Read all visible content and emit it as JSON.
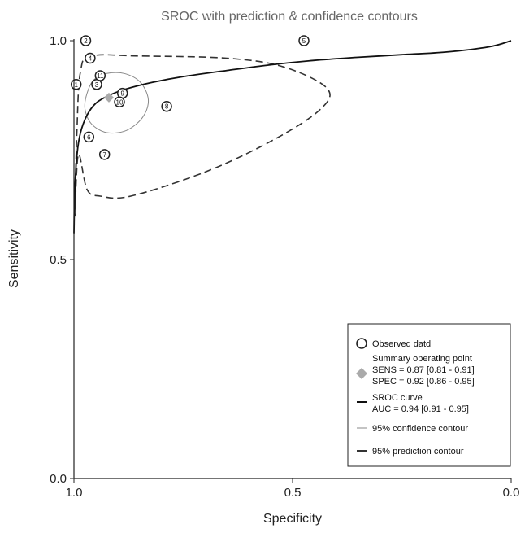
{
  "chart_data": {
    "type": "scatter",
    "title": "SROC with  prediction & confidence contours",
    "xlabel": "Specificity",
    "ylabel": "Sensitivity",
    "xlim": [
      1.0,
      0.0
    ],
    "ylim": [
      0.0,
      1.0
    ],
    "x_axis_reversed": true,
    "x_ticks": [
      "1.0",
      "0.5",
      "0.0"
    ],
    "y_ticks": [
      "0.0",
      "0.5",
      "1.0"
    ],
    "grid": false,
    "legend_position": "bottom-right",
    "studies": [
      {
        "label": "1",
        "specificity": 0.995,
        "sensitivity": 0.9
      },
      {
        "label": "2",
        "specificity": 0.973,
        "sensitivity": 1.0
      },
      {
        "label": "3",
        "specificity": 0.948,
        "sensitivity": 0.9
      },
      {
        "label": "4",
        "specificity": 0.963,
        "sensitivity": 0.96
      },
      {
        "label": "5",
        "specificity": 0.474,
        "sensitivity": 1.0
      },
      {
        "label": "6",
        "specificity": 0.966,
        "sensitivity": 0.78
      },
      {
        "label": "7",
        "specificity": 0.93,
        "sensitivity": 0.74
      },
      {
        "label": "8",
        "specificity": 0.788,
        "sensitivity": 0.85
      },
      {
        "label": "9",
        "specificity": 0.889,
        "sensitivity": 0.88
      },
      {
        "label": "10",
        "specificity": 0.896,
        "sensitivity": 0.86
      },
      {
        "label": "11",
        "specificity": 0.94,
        "sensitivity": 0.92
      }
    ],
    "summary_point": {
      "specificity": 0.92,
      "sensitivity": 0.87
    },
    "sroc_curve": [
      [
        1.0,
        0.56
      ],
      [
        0.998,
        0.66
      ],
      [
        0.993,
        0.74
      ],
      [
        0.985,
        0.79
      ],
      [
        0.97,
        0.83
      ],
      [
        0.95,
        0.857
      ],
      [
        0.92,
        0.875
      ],
      [
        0.88,
        0.89
      ],
      [
        0.82,
        0.905
      ],
      [
        0.75,
        0.918
      ],
      [
        0.65,
        0.932
      ],
      [
        0.55,
        0.945
      ],
      [
        0.45,
        0.955
      ],
      [
        0.35,
        0.962
      ],
      [
        0.25,
        0.968
      ],
      [
        0.15,
        0.974
      ],
      [
        0.05,
        0.986
      ],
      [
        0.0,
        1.0
      ]
    ],
    "confidence_contour": [
      [
        0.97,
        0.88
      ],
      [
        0.955,
        0.91
      ],
      [
        0.925,
        0.925
      ],
      [
        0.885,
        0.925
      ],
      [
        0.848,
        0.905
      ],
      [
        0.83,
        0.865
      ],
      [
        0.843,
        0.825
      ],
      [
        0.88,
        0.795
      ],
      [
        0.925,
        0.79
      ],
      [
        0.96,
        0.81
      ],
      [
        0.975,
        0.845
      ]
    ],
    "prediction_contour": [
      [
        0.998,
        0.6
      ],
      [
        0.993,
        0.8
      ],
      [
        0.985,
        0.93
      ],
      [
        0.96,
        0.965
      ],
      [
        0.85,
        0.965
      ],
      [
        0.65,
        0.96
      ],
      [
        0.52,
        0.94
      ],
      [
        0.42,
        0.89
      ],
      [
        0.44,
        0.84
      ],
      [
        0.55,
        0.77
      ],
      [
        0.7,
        0.7
      ],
      [
        0.87,
        0.645
      ],
      [
        0.94,
        0.645
      ],
      [
        0.97,
        0.66
      ],
      [
        0.99,
        0.74
      ]
    ],
    "legend": {
      "observed_label": "Observed datd",
      "summary_label": "Summary operating point",
      "sens_label": "SENS = 0.87 [0.81 - 0.91]",
      "spec_label": "SPEC = 0.92 [0.86 - 0.95]",
      "sroc_label": "SROC curve",
      "auc_label": "AUC = 0.94 [0.91 - 0.95]",
      "confidence_label": "95% confidence contour",
      "prediction_label": "95% prediction contour"
    },
    "colors": {
      "points": "#222222",
      "summary": "#aaaaaa",
      "curve": "#111111",
      "confidence": "#888888",
      "prediction": "#333333"
    }
  }
}
